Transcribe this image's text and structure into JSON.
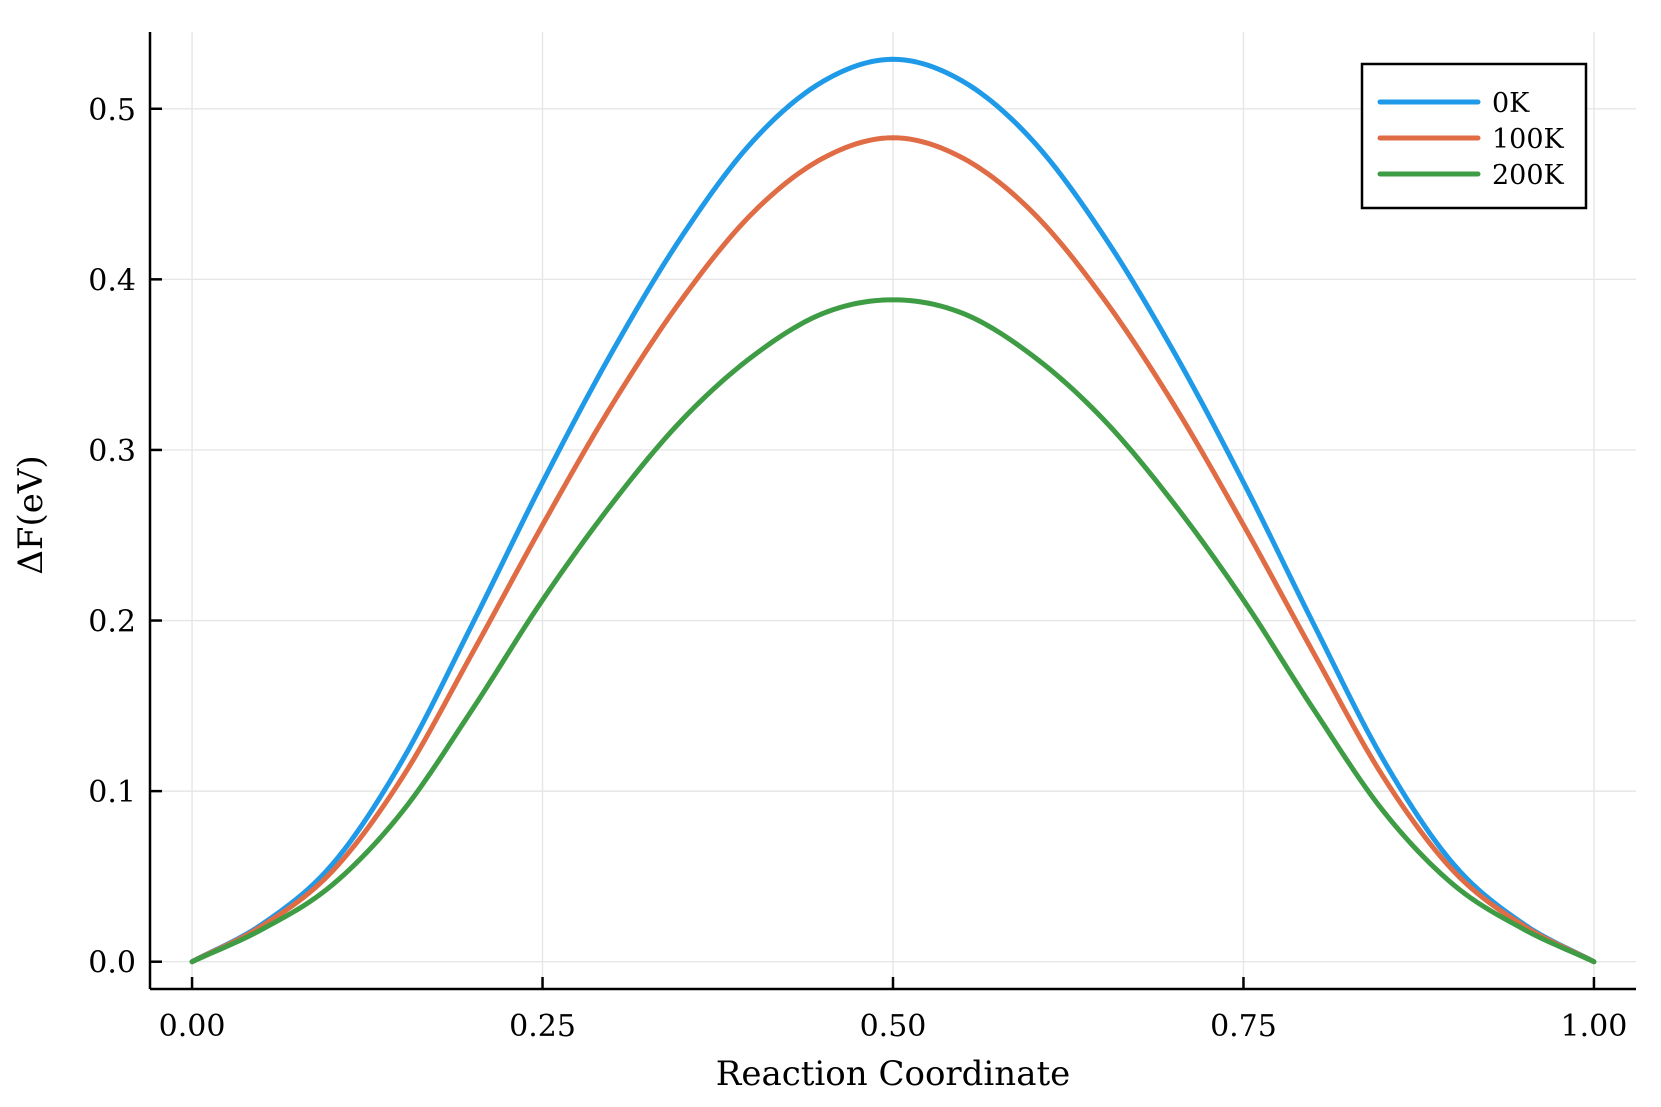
{
  "chart_data": {
    "type": "line",
    "title": "",
    "xlabel": "Reaction Coordinate",
    "ylabel": "ΔF(eV)",
    "xlim": [
      -0.03,
      1.03
    ],
    "ylim": [
      -0.016,
      0.545
    ],
    "x_ticks": [
      0.0,
      0.25,
      0.5,
      0.75,
      1.0
    ],
    "x_tick_labels": [
      "0.00",
      "0.25",
      "0.50",
      "0.75",
      "1.00"
    ],
    "y_ticks": [
      0.0,
      0.1,
      0.2,
      0.3,
      0.4,
      0.5
    ],
    "y_tick_labels": [
      "0.0",
      "0.1",
      "0.2",
      "0.3",
      "0.4",
      "0.5"
    ],
    "grid": true,
    "legend_position": "top-right",
    "x": [
      0.0,
      0.05,
      0.1,
      0.15,
      0.2,
      0.25,
      0.3,
      0.35,
      0.4,
      0.45,
      0.5,
      0.55,
      0.6,
      0.65,
      0.7,
      0.75,
      0.8,
      0.85,
      0.9,
      0.95,
      1.0
    ],
    "series": [
      {
        "name": "0K",
        "color": "#1f9ae8",
        "values": [
          0.0,
          0.022,
          0.057,
          0.118,
          0.198,
          0.281,
          0.358,
          0.426,
          0.481,
          0.516,
          0.529,
          0.516,
          0.481,
          0.426,
          0.358,
          0.281,
          0.198,
          0.118,
          0.057,
          0.022,
          0.0
        ]
      },
      {
        "name": "100K",
        "color": "#e06c45",
        "values": [
          0.0,
          0.021,
          0.053,
          0.108,
          0.181,
          0.256,
          0.327,
          0.389,
          0.439,
          0.471,
          0.483,
          0.471,
          0.439,
          0.389,
          0.327,
          0.256,
          0.181,
          0.108,
          0.053,
          0.021,
          0.0
        ]
      },
      {
        "name": "200K",
        "color": "#3e9c45",
        "values": [
          0.0,
          0.019,
          0.045,
          0.088,
          0.148,
          0.212,
          0.269,
          0.318,
          0.355,
          0.38,
          0.388,
          0.38,
          0.355,
          0.318,
          0.269,
          0.212,
          0.148,
          0.088,
          0.045,
          0.019,
          0.0
        ]
      }
    ]
  }
}
